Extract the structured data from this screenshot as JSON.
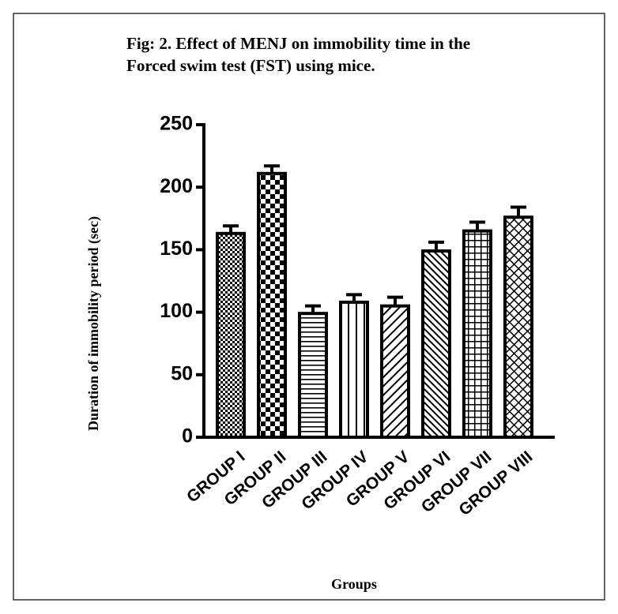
{
  "chart_data": {
    "type": "bar",
    "title": [
      "Fig: 2. Effect of MENJ on immobility time in the",
      "Forced swim test (FST) using mice."
    ],
    "x_label": "Groups",
    "y_label": "Duration of immobility period (sec)",
    "categories": [
      "GROUP I",
      "GROUP II",
      "GROUP III",
      "GROUP IV",
      "GROUP V",
      "GROUP VI",
      "GROUP VII",
      "GROUP VIII"
    ],
    "values": [
      163,
      211,
      99,
      108,
      105,
      149,
      165,
      176
    ],
    "errors": [
      6,
      6,
      6,
      6,
      7,
      7,
      7,
      8
    ],
    "color": "#000000",
    "ylim": [
      0,
      250
    ],
    "yticks": [
      0,
      50,
      100,
      150,
      200,
      250
    ],
    "grid": false
  }
}
